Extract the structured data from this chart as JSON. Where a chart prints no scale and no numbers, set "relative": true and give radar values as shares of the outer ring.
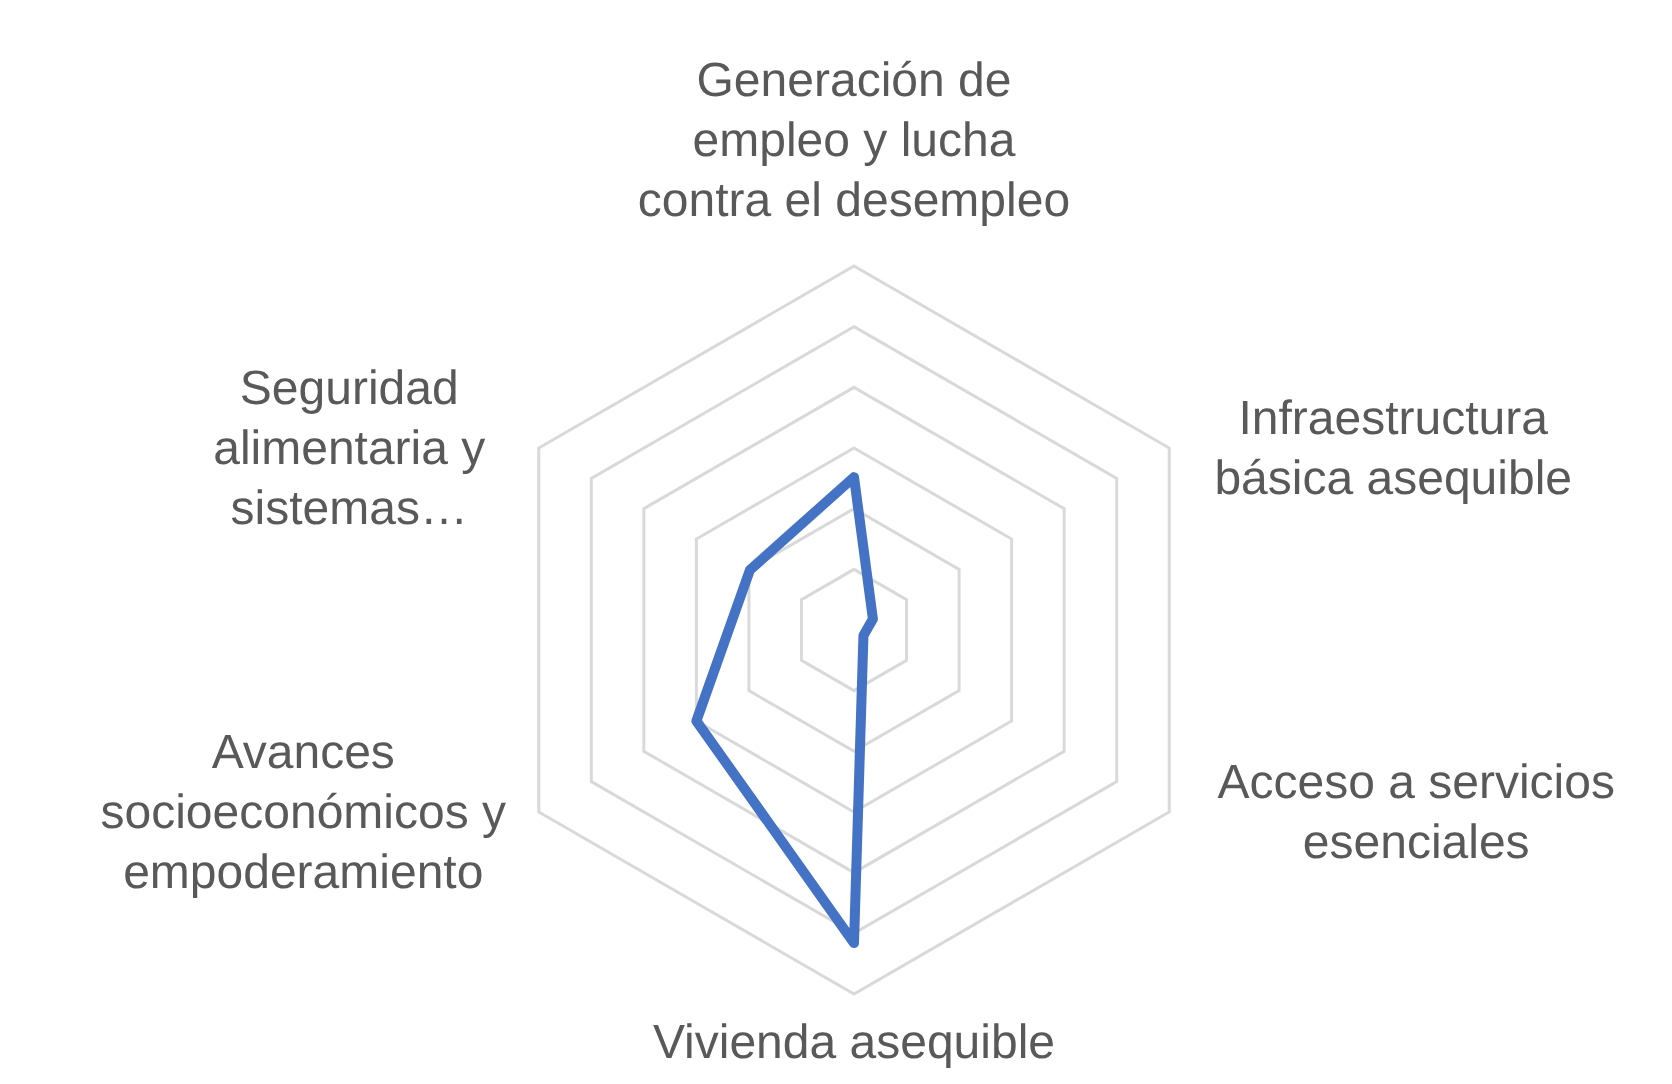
{
  "chart_data": {
    "type": "radar",
    "relative": true,
    "grid": true,
    "categories": [
      "Generación de empleo y lucha contra el desempleo",
      "Infraestructura básica asequible",
      "Acceso a servicios esenciales",
      "Vivienda asequible",
      "Avances socioeconómicos y empoderamiento",
      "Seguridad alimentaria y sistemas…"
    ],
    "series": [
      {
        "color": "#4472c4",
        "values": [
          0.42,
          0.06,
          0.03,
          0.86,
          0.5,
          0.33
        ]
      }
    ]
  }
}
